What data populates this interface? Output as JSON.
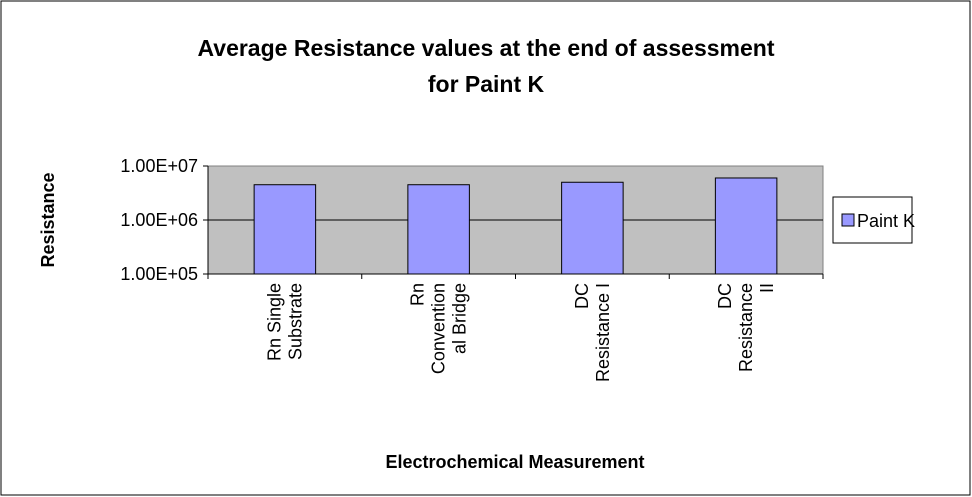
{
  "chart_data": {
    "type": "bar",
    "title": "Average Resistance values at the end of assessment\nfor Paint K",
    "xlabel": "Electrochemical Measurement",
    "ylabel": "Resistance",
    "categories": [
      "Rn Single\nSubstrate",
      "Rn\nConvention\nal Bridge",
      "DC\nResistance I",
      "DC\nResistance\nII"
    ],
    "series": [
      {
        "name": "Paint K",
        "color": "#9999ff",
        "values": [
          4500000,
          4500000,
          5000000,
          6000000
        ]
      }
    ],
    "ylim": [
      100000,
      10000000
    ],
    "yticks": [
      {
        "value": 100000,
        "label": "1.00E+05"
      },
      {
        "value": 1000000,
        "label": "1.00E+06"
      },
      {
        "value": 10000000,
        "label": "1.00E+07"
      }
    ],
    "log_scale": true,
    "grid": true,
    "legend": "right"
  }
}
